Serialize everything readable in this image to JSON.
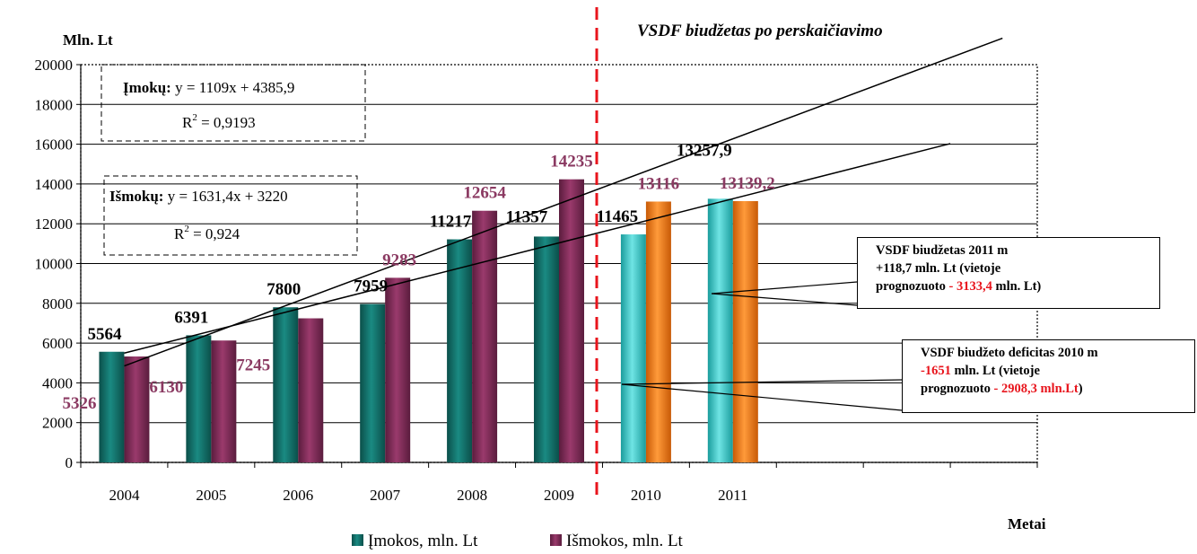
{
  "chart_data": {
    "type": "bar",
    "ylabel": "Mln. Lt",
    "xlabel": "Metai",
    "subtitle": "VSDF biudžetas po perskaičiavimo",
    "ylim": [
      0,
      20000
    ],
    "yticks": [
      0,
      2000,
      4000,
      6000,
      8000,
      10000,
      12000,
      14000,
      16000,
      18000,
      20000
    ],
    "grid": true,
    "categories": [
      "2004",
      "2005",
      "2006",
      "2007",
      "2008",
      "2009",
      "2010",
      "2011"
    ],
    "extra_categories": 3,
    "divider_after": "2009",
    "series": [
      {
        "name": "Įmokos, mln. Lt",
        "values": [
          5564,
          6391,
          7800,
          7959,
          11217,
          11357,
          11465,
          13257.9
        ],
        "labels": [
          "5564",
          "6391",
          "7800",
          "7959",
          "11217",
          "11357",
          "11465",
          "13257,9"
        ],
        "color": "#0f6e68",
        "color_recalc": "#33c6c6"
      },
      {
        "name": "Išmokos, mln. Lt",
        "values": [
          5326,
          6130,
          7245,
          9283,
          12654,
          14235,
          13116,
          13139.2
        ],
        "labels": [
          "5326",
          "6130",
          "7245",
          "9283",
          "12654",
          "14235",
          "13116",
          "13139,2"
        ],
        "color": "#7d2a55",
        "color_recalc": "#f07a10"
      }
    ],
    "trendlines": [
      {
        "series": "Įmokos",
        "label": "Įmokų:",
        "equation": "y = 1109x + 4385,9",
        "r2_prefix": "R",
        "r2_sup": "2",
        "r2_value": " = 0,9193",
        "slope": 1109,
        "intercept": 4385.9
      },
      {
        "series": "Išmokos",
        "label": "Išmokų:",
        "equation": "y = 1631,4x + 3220",
        "r2_prefix": "R",
        "r2_sup": "2",
        "r2_value": " = 0,924",
        "slope": 1631.4,
        "intercept": 3220
      }
    ],
    "legend_position": "bottom",
    "annotations": {
      "a2011": {
        "line1": "VSDF biudžetas 2011 m",
        "line2": "+118,7 mln. Lt (vietoje",
        "line3a": "prognozuoto ",
        "line3b": "- 3133,4",
        "line3c": " mln. Lt)"
      },
      "a2010": {
        "line1": "VSDF biudžeto deficitas 2010 m",
        "line2a": "-1651",
        "line2b": " mln. Lt (vietoje",
        "line3a": "prognozuoto ",
        "line3b": "- 2908,3 mln.Lt",
        "line3c": ")"
      }
    }
  }
}
